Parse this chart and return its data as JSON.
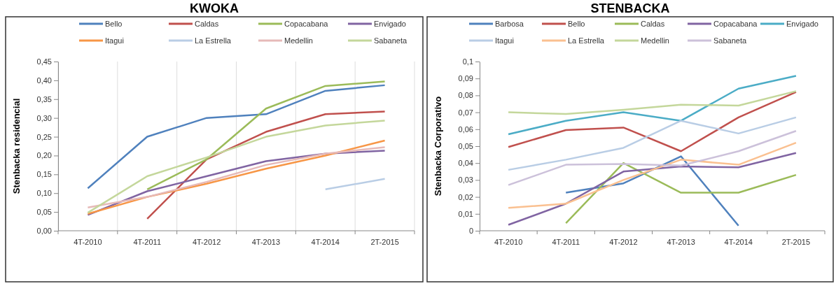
{
  "chart_data": [
    {
      "type": "line",
      "title": "KWOKA",
      "ylabel": "Stenbacka residencial",
      "categories": [
        "4T-2010",
        "4T-2011",
        "4T-2012",
        "4T-2013",
        "4T-2014",
        "2T-2015"
      ],
      "ylim": [
        0,
        0.45
      ],
      "yticks": [
        {
          "value": 0,
          "label": "0,00"
        },
        {
          "value": 0.05,
          "label": "0,05"
        },
        {
          "value": 0.1,
          "label": "0,10"
        },
        {
          "value": 0.15,
          "label": "0,15"
        },
        {
          "value": 0.2,
          "label": "0,20"
        },
        {
          "value": 0.25,
          "label": "0,25"
        },
        {
          "value": 0.3,
          "label": "0,30"
        },
        {
          "value": 0.35,
          "label": "0,35"
        },
        {
          "value": 0.4,
          "label": "0,40"
        },
        {
          "value": 0.45,
          "label": "0,45"
        }
      ],
      "grid": "x",
      "legend": "top",
      "marker": "none",
      "line_style": "solid",
      "series": [
        {
          "name": "Bello",
          "color": "#4f81bd",
          "values": [
            0.113,
            0.25,
            0.3,
            0.31,
            0.372,
            0.387
          ]
        },
        {
          "name": "Caldas",
          "color": "#c0504d",
          "values": [
            null,
            0.032,
            0.19,
            0.263,
            0.31,
            0.317
          ]
        },
        {
          "name": "Copacabana",
          "color": "#9bbb59",
          "values": [
            null,
            0.11,
            0.19,
            0.325,
            0.385,
            0.397
          ]
        },
        {
          "name": "Envigado",
          "color": "#8064a2",
          "values": [
            0.042,
            0.105,
            0.145,
            0.185,
            0.205,
            0.213
          ]
        },
        {
          "name": "Itagui",
          "color": "#f79646",
          "values": [
            0.045,
            0.09,
            0.125,
            0.165,
            0.2,
            0.24
          ]
        },
        {
          "name": "La Estrella",
          "color": "#b9cde5",
          "values": [
            null,
            null,
            null,
            null,
            0.11,
            0.138
          ]
        },
        {
          "name": "Medellin",
          "color": "#e6b9b8",
          "values": [
            0.062,
            0.09,
            0.13,
            0.175,
            0.205,
            0.222
          ]
        },
        {
          "name": "Sabaneta",
          "color": "#c4d79b",
          "values": [
            0.048,
            0.145,
            0.195,
            0.25,
            0.28,
            0.293
          ]
        }
      ]
    },
    {
      "type": "line",
      "title": "STENBACKA",
      "ylabel": "Stenbacka Corporativo",
      "categories": [
        "4T-2010",
        "4T-2011",
        "4T-2012",
        "4T-2013",
        "4T-2014",
        "2T-2015"
      ],
      "ylim": [
        0,
        0.1
      ],
      "yticks": [
        0,
        {
          "value": 0.01,
          "label": "0,01"
        },
        {
          "value": 0.02,
          "label": "0,02"
        },
        {
          "value": 0.03,
          "label": "0,03"
        },
        {
          "value": 0.04,
          "label": "0,04"
        },
        {
          "value": 0.05,
          "label": "0,05"
        },
        {
          "value": 0.06,
          "label": "0,06"
        },
        {
          "value": 0.07,
          "label": "0,07"
        },
        {
          "value": 0.08,
          "label": "0,08"
        },
        {
          "value": 0.09,
          "label": "0,09"
        },
        {
          "value": 0.1,
          "label": "0,1"
        }
      ],
      "grid": false,
      "legend": "top",
      "marker": "none",
      "line_style": "solid",
      "series": [
        {
          "name": "Barbosa",
          "color": "#4f81bd",
          "values": [
            null,
            0.0225,
            0.028,
            0.044,
            0.003,
            null
          ]
        },
        {
          "name": "Bello",
          "color": "#c0504d",
          "values": [
            0.0495,
            0.0595,
            0.061,
            0.047,
            0.067,
            0.082
          ]
        },
        {
          "name": "Caldas",
          "color": "#9bbb59",
          "values": [
            null,
            0.0045,
            0.04,
            0.0225,
            0.0225,
            0.033
          ]
        },
        {
          "name": "Copacabana",
          "color": "#8064a2",
          "values": [
            0.0035,
            0.016,
            0.035,
            0.038,
            0.0375,
            0.046
          ]
        },
        {
          "name": "Envigado",
          "color": "#4bacc6",
          "values": [
            0.057,
            0.065,
            0.07,
            0.065,
            0.084,
            0.0915
          ]
        },
        {
          "name": "Itagui",
          "color": "#b9cde5",
          "values": [
            0.036,
            0.042,
            0.049,
            0.065,
            0.0575,
            0.067
          ]
        },
        {
          "name": "La Estrella",
          "color": "#fac090",
          "values": [
            0.0135,
            0.016,
            0.03,
            0.042,
            0.039,
            0.052
          ]
        },
        {
          "name": "Medellin",
          "color": "#c4d79b",
          "values": [
            0.07,
            0.069,
            0.0715,
            0.0745,
            0.074,
            0.0825
          ]
        },
        {
          "name": "Sabaneta",
          "color": "#ccc1da",
          "values": [
            0.027,
            0.039,
            0.0395,
            0.0385,
            0.047,
            0.059
          ]
        }
      ]
    }
  ]
}
